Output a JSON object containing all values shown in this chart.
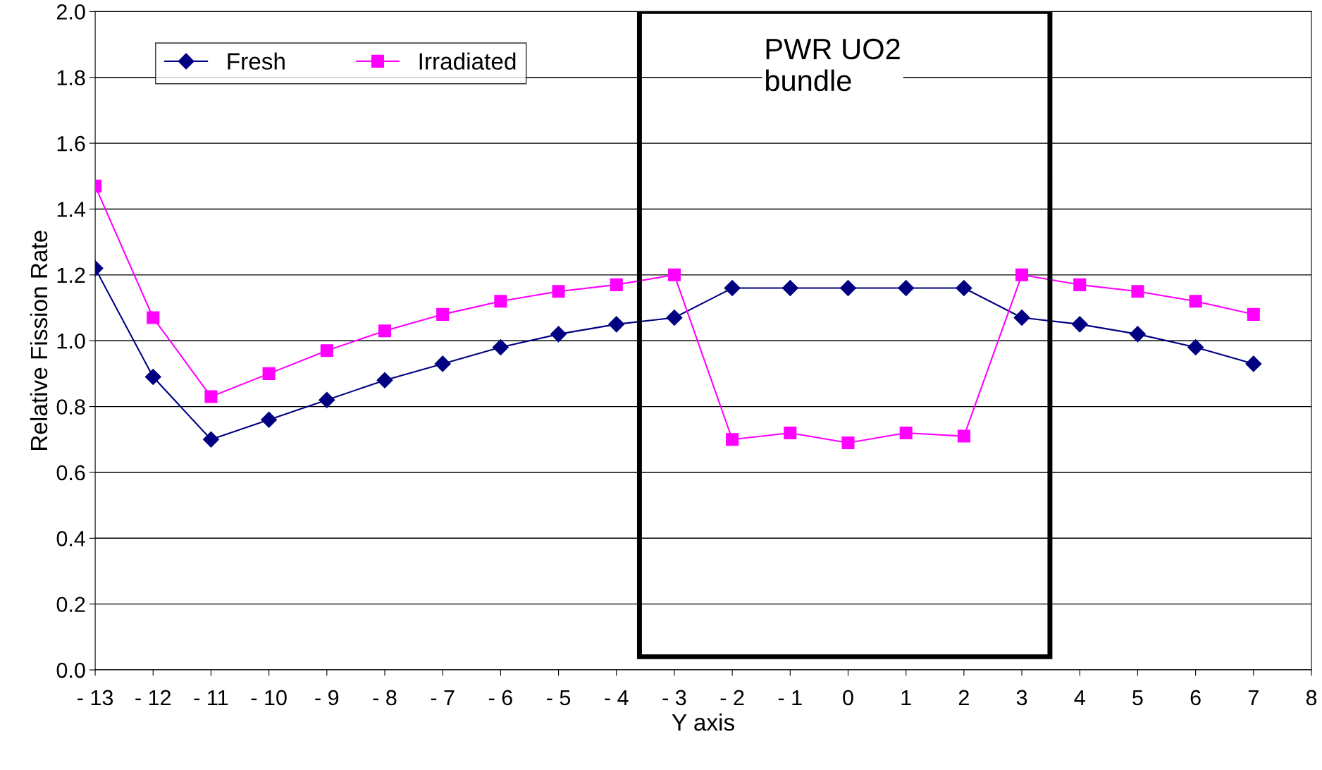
{
  "chart_data": {
    "type": "line",
    "xlabel": "Y axis",
    "ylabel": "Relative Fission Rate",
    "x": [
      -13,
      -12,
      -11,
      -10,
      -9,
      -8,
      -7,
      -6,
      -5,
      -4,
      -3,
      -2,
      -1,
      0,
      1,
      2,
      3,
      4,
      5,
      6,
      7
    ],
    "series": [
      {
        "name": "Fresh",
        "color": "#000080",
        "marker": "diamond",
        "values": [
          1.22,
          0.89,
          0.7,
          0.76,
          0.82,
          0.88,
          0.93,
          0.98,
          1.02,
          1.05,
          1.07,
          1.16,
          1.16,
          1.16,
          1.16,
          1.16,
          1.07,
          1.05,
          1.02,
          0.98,
          0.93
        ]
      },
      {
        "name": "Irradiated",
        "color": "#ff00ff",
        "marker": "square",
        "values": [
          1.47,
          1.07,
          0.83,
          0.9,
          0.97,
          1.03,
          1.08,
          1.12,
          1.15,
          1.17,
          1.2,
          0.7,
          0.72,
          0.69,
          0.72,
          0.71,
          1.2,
          1.17,
          1.15,
          1.12,
          1.08
        ]
      }
    ],
    "xlim": [
      -13,
      8
    ],
    "xticks": [
      {
        "value": -13,
        "label": "- 13"
      },
      {
        "value": -12,
        "label": "- 12"
      },
      {
        "value": -11,
        "label": "- 11"
      },
      {
        "value": -10,
        "label": "- 10"
      },
      {
        "value": -9,
        "label": "- 9"
      },
      {
        "value": -8,
        "label": "- 8"
      },
      {
        "value": -7,
        "label": "- 7"
      },
      {
        "value": -6,
        "label": "- 6"
      },
      {
        "value": -5,
        "label": "- 5"
      },
      {
        "value": -4,
        "label": "- 4"
      },
      {
        "value": -3,
        "label": "- 3"
      },
      {
        "value": -2,
        "label": "- 2"
      },
      {
        "value": -1,
        "label": "- 1"
      },
      0,
      1,
      2,
      3,
      4,
      5,
      6,
      7,
      8
    ],
    "ylim": [
      0,
      2.0
    ],
    "yticks": [
      {
        "value": 0,
        "label": "0.0"
      },
      {
        "value": 0.2,
        "label": "0.2"
      },
      {
        "value": 0.4,
        "label": "0.4"
      },
      {
        "value": 0.6,
        "label": "0.6"
      },
      {
        "value": 0.8,
        "label": "0.8"
      },
      {
        "value": 1.0,
        "label": "1.0"
      },
      {
        "value": 1.2,
        "label": "1.2"
      },
      {
        "value": 1.4,
        "label": "1.4"
      },
      {
        "value": 1.6,
        "label": "1.6"
      },
      {
        "value": 1.8,
        "label": "1.8"
      },
      {
        "value": 2.0,
        "label": "2.0"
      }
    ],
    "annotations": [
      "PWR UO2\nbundle"
    ],
    "grid": "y",
    "legend": "top left",
    "line_style": "solid"
  }
}
